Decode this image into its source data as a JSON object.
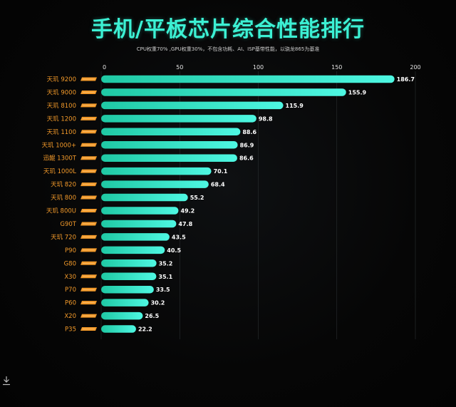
{
  "title": "手机/平板芯片综合性能排行",
  "subtitle": "CPU权重70% ,GPU权重30%，不包含功耗、AI、ISP基带性能，以骁龙865为基准",
  "colors": {
    "accent": "#3cf1d4",
    "bar_start": "#1fc9a4",
    "bar_end": "#4ef7e2",
    "category_text": "#f39a2a",
    "badge": "#f39a2a"
  },
  "icons": {
    "download": "download-icon"
  },
  "chart_data": {
    "type": "bar",
    "orientation": "horizontal",
    "title": "手机/平板芯片综合性能排行",
    "subtitle": "CPU权重70% ,GPU权重30%，不包含功耗、AI、ISP基带性能，以骁龙865为基准",
    "xlim": [
      0,
      200
    ],
    "x_ticks": [
      0,
      50,
      100,
      150,
      200
    ],
    "grid": true,
    "categories": [
      "天玑 9200",
      "天玑 9000",
      "天玑 8100",
      "天玑 1200",
      "天玑 1100",
      "天玑 1000+",
      "迅鲲 1300T",
      "天玑 1000L",
      "天玑 820",
      "天玑 800",
      "天玑 800U",
      "G90T",
      "天玑 720",
      "P90",
      "G80",
      "X30",
      "P70",
      "P60",
      "X20",
      "P35"
    ],
    "values": [
      186.7,
      155.9,
      115.9,
      98.8,
      88.6,
      86.9,
      86.6,
      70.1,
      68.4,
      55.2,
      49.2,
      47.8,
      43.5,
      40.5,
      35.2,
      35.1,
      33.5,
      30.2,
      26.5,
      22.2
    ],
    "value_labels": [
      "186.7",
      "155.9",
      "115.9",
      "98.8",
      "88.6",
      "86.9",
      "86.6",
      "70.1",
      "68.4",
      "55.2",
      "49.2",
      "47.8",
      "43.5",
      "40.5",
      "35.2",
      "35.1",
      "33.5",
      "30.2",
      "26.5",
      "22.2"
    ]
  }
}
